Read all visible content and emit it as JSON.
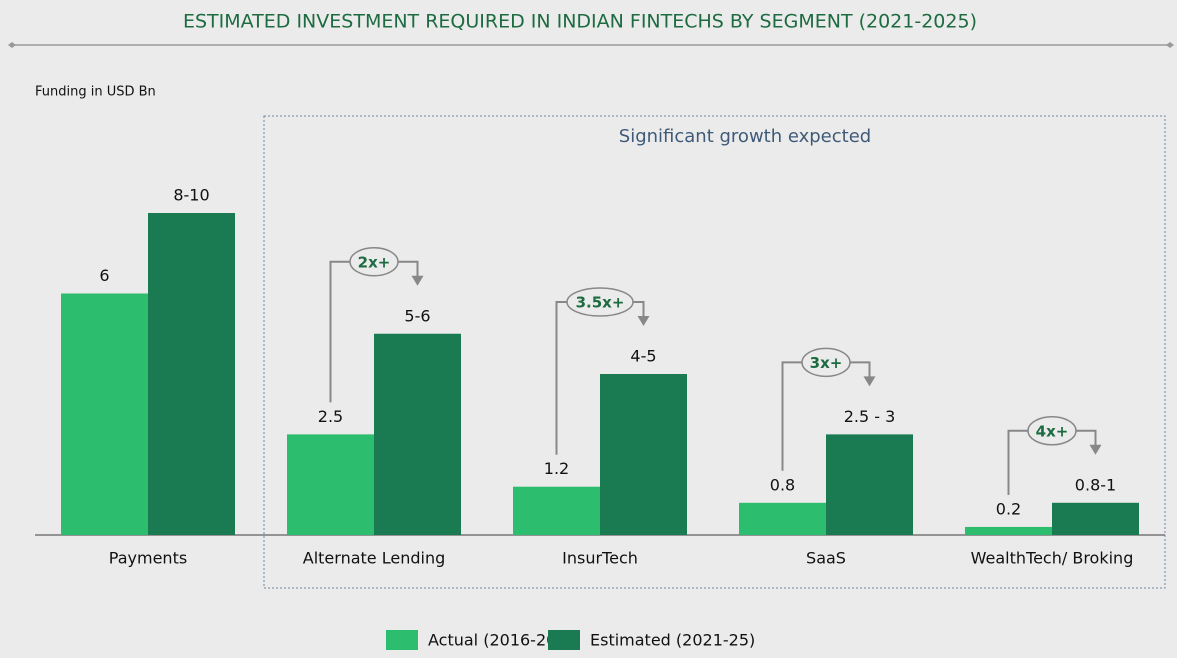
{
  "chart_data": {
    "type": "bar",
    "title": "ESTIMATED INVESTMENT REQUIRED IN INDIAN FINTECHS BY SEGMENT (2021-2025)",
    "y_label": "Funding in USD Bn",
    "annotation": "Significant growth expected",
    "categories": [
      "Payments",
      "Alternate Lending",
      "InsurTech",
      "SaaS",
      "WealthTech/ Broking"
    ],
    "series": [
      {
        "name": "Actual (2016-20)",
        "color": "#2dbd6e",
        "values": [
          6,
          2.5,
          1.2,
          0.8,
          0.2
        ]
      },
      {
        "name": "Estimated (2021-25)",
        "color": "#1a7a52",
        "values": [
          8,
          5,
          4,
          2.5,
          0.8
        ],
        "value_labels": [
          "8-10",
          "5-6",
          "4-5",
          "2.5 - 3",
          "0.8-1"
        ]
      }
    ],
    "growth_labels": [
      null,
      "2x+",
      "3.5x+",
      "3x+",
      "4x+"
    ]
  }
}
